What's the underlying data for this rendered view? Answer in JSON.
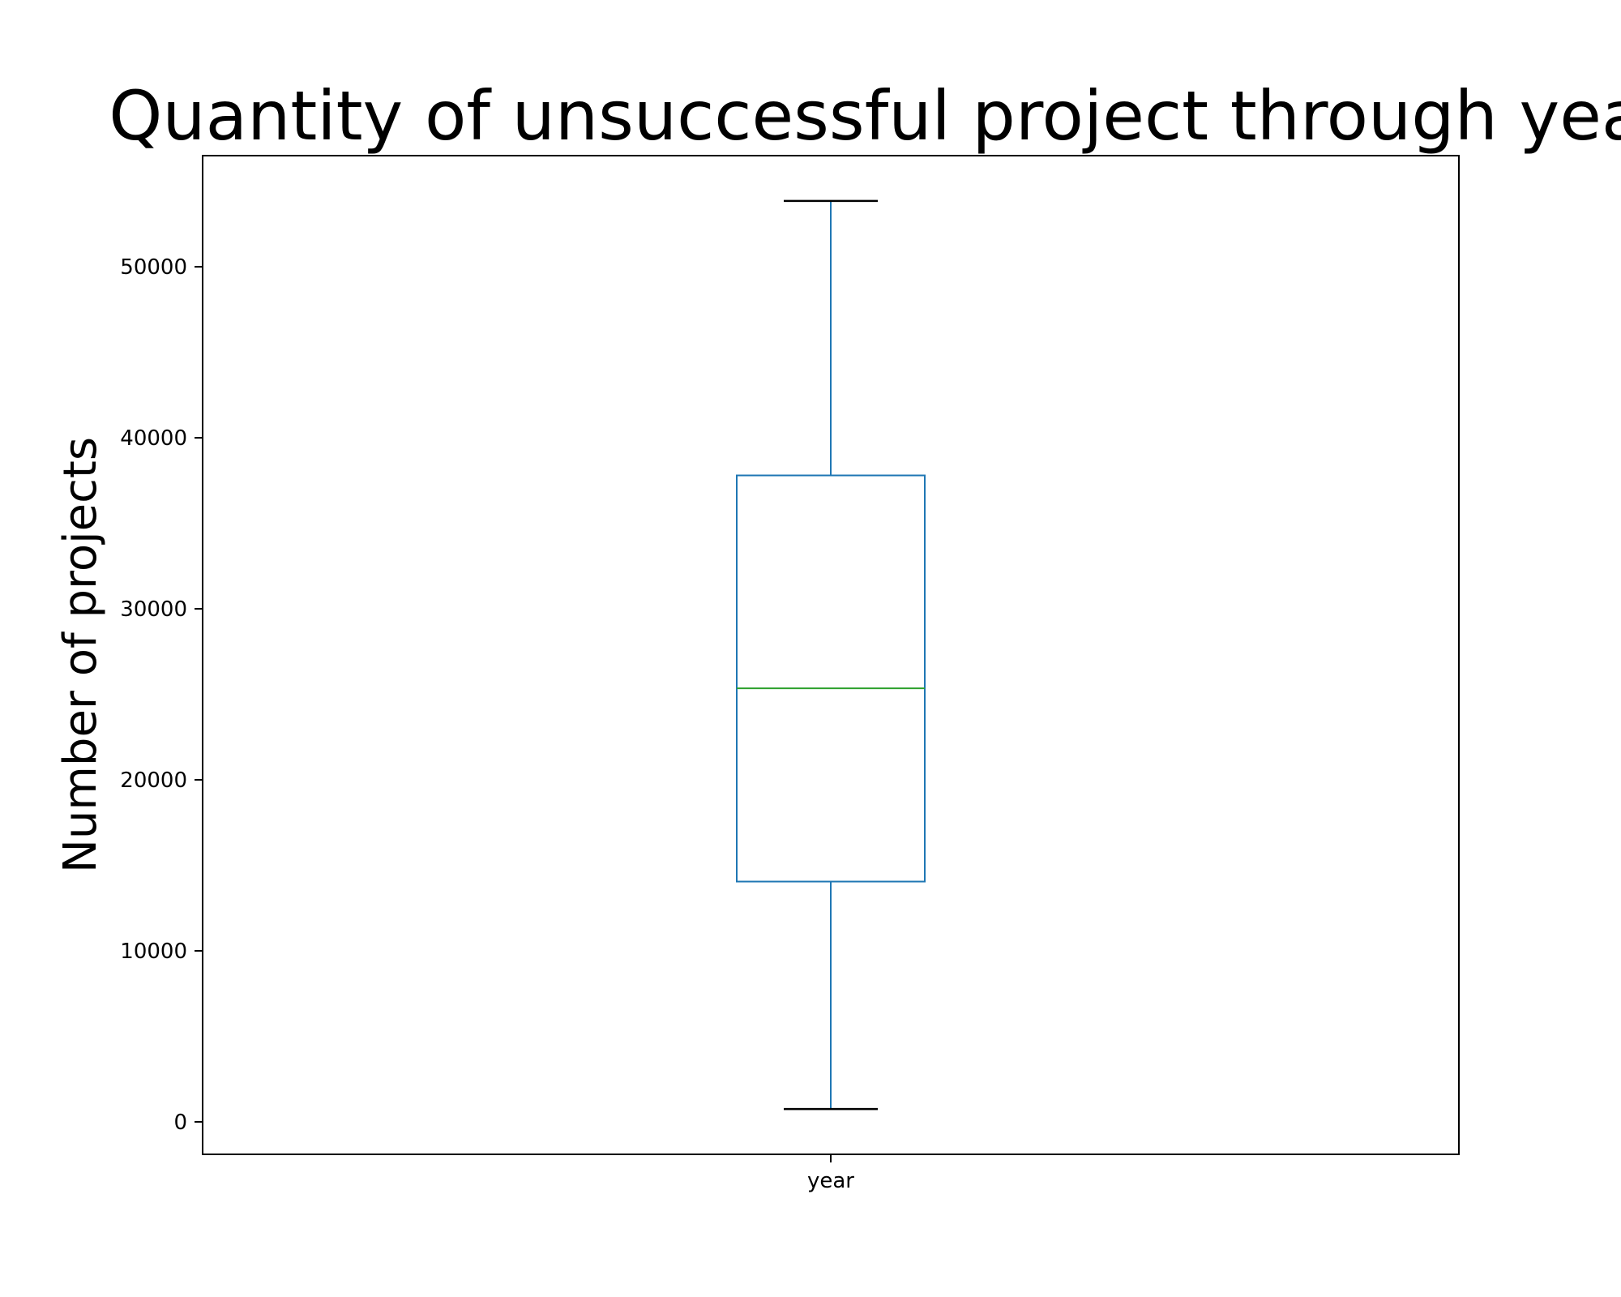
{
  "chart_data": {
    "type": "box",
    "title": "Quantity of unsuccessful project through years",
    "xlabel": "",
    "ylabel": "Number of projects",
    "categories": [
      "year"
    ],
    "boxes": [
      {
        "label": "year",
        "whisker_low": 750,
        "q1": 14050,
        "median": 25350,
        "q3": 37800,
        "whisker_high": 53850
      }
    ],
    "yticks": [
      0,
      10000,
      20000,
      30000,
      40000,
      50000
    ],
    "ylim": [
      -1900,
      56500
    ],
    "grid": false,
    "colors": {
      "box": "#1f77b4",
      "median": "#2ca02c",
      "caps": "#000000",
      "axes": "#000000"
    }
  }
}
